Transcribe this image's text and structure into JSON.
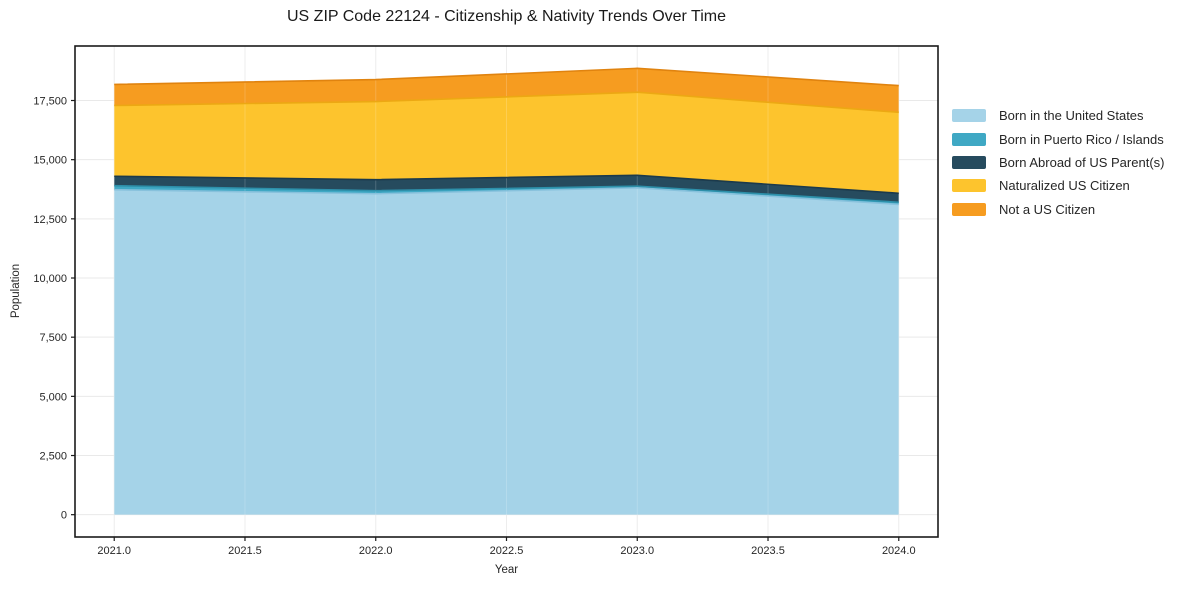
{
  "chart": {
    "title": "US ZIP Code 22124 - Citizenship & Nativity Trends Over Time",
    "xlabel": "Year",
    "ylabel": "Population"
  },
  "chart_data": {
    "type": "area",
    "stacked": true,
    "title": "US ZIP Code 22124 - Citizenship & Nativity Trends Over Time",
    "xlabel": "Year",
    "ylabel": "Population",
    "x": [
      2021,
      2022,
      2023,
      2024
    ],
    "series": [
      {
        "name": "Born in the United States",
        "values": [
          13730,
          13560,
          13810,
          13110
        ],
        "color": "#a5d3e8",
        "edge": "#87c1dc"
      },
      {
        "name": "Born in Puerto Rico / Islands",
        "values": [
          170,
          130,
          70,
          90
        ],
        "color": "#3fa8c4",
        "edge": "#2d8fa9"
      },
      {
        "name": "Born Abroad of US Parent(s)",
        "values": [
          400,
          465,
          460,
          380
        ],
        "color": "#264b5e",
        "edge": "#1b3a4c"
      },
      {
        "name": "Naturalized US Citizen",
        "values": [
          2990,
          3300,
          3510,
          3420
        ],
        "color": "#fdc42d",
        "edge": "#eca813"
      },
      {
        "name": "Not a US Citizen",
        "values": [
          890,
          930,
          1010,
          1130
        ],
        "color": "#f69c20",
        "edge": "#e0830f"
      }
    ],
    "xlim": [
      2020.85,
      2024.15
    ],
    "ylim": [
      -943,
      19803
    ],
    "xticks": {
      "values": [
        2021,
        2021.5,
        2022,
        2022.5,
        2023,
        2023.5,
        2024
      ],
      "labels": [
        "2021.0",
        "2021.5",
        "2022.0",
        "2022.5",
        "2023.0",
        "2023.5",
        "2024.0"
      ]
    },
    "yticks": {
      "values": [
        0,
        2500,
        5000,
        7500,
        10000,
        12500,
        15000,
        17500
      ],
      "labels": [
        "0",
        "2,500",
        "5,000",
        "7,500",
        "10,000",
        "12,500",
        "15,000",
        "17,500"
      ]
    },
    "grid": true,
    "grid_color": "#e9e9e9",
    "spine_color": "#1a1a1a",
    "tick_label_color": "#262626",
    "legend_position": "right-outside"
  }
}
